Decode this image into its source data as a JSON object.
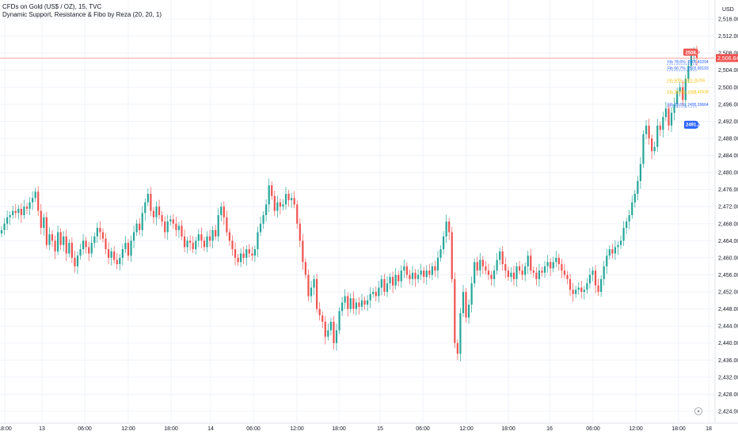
{
  "header": {
    "symbol_line": "CFDs on Gold (US$ / OZ), 15, TVC",
    "indicator_line": "Dynamic Support, Resistance & Fibo by Reza (20, 20, 1)",
    "currency": "USD"
  },
  "colors": {
    "up": "#26a69a",
    "down": "#ef5350",
    "grid": "#f0f3fa",
    "price_line": "#ef5350",
    "resistance": "#ef5350",
    "support": "#2962ff",
    "fib": "#2962ff",
    "fib_mid": "#f5c518"
  },
  "chart_data": {
    "type": "candlestick",
    "title": "CFDs on Gold (US$ / OZ), 15, TVC",
    "ylim": [
      2422,
      2518
    ],
    "yticks": [
      "2,516.00",
      "2,512.00",
      "2,508.00",
      "2,504.00",
      "2,500.00",
      "2,496.00",
      "2,492.00",
      "2,488.00",
      "2,484.00",
      "2,480.00",
      "2,476.00",
      "2,472.00",
      "2,468.00",
      "2,464.00",
      "2,460.00",
      "2,456.00",
      "2,452.00",
      "2,448.00",
      "2,444.00",
      "2,440.00",
      "2,436.00",
      "2,432.00",
      "2,428.00",
      "2,424.00"
    ],
    "xticks": [
      "18:00",
      "13",
      "06:00",
      "12:00",
      "18:00",
      "14",
      "06:00",
      "12:00",
      "18:00",
      "15",
      "06:00",
      "12:00",
      "18:00",
      "16",
      "06:00",
      "12:00",
      "18:00",
      "18"
    ],
    "last_price": "2,506.84",
    "last_price_value": 2506.84,
    "resistance_label": "2508.11",
    "resistance_value": 2508.11,
    "support_label": "2491.2",
    "support_value": 2491.2,
    "fib_levels": [
      {
        "label": "Fib 78.6%: 2505.40294",
        "value": 2505.40294
      },
      {
        "label": "Fib 66.7%: 2503.90193",
        "value": 2503.90193
      },
      {
        "label": "Fib 50%: 2501.05265",
        "value": 2501.05265
      },
      {
        "label": "Fib 38.2%: 2498.40938",
        "value": 2498.40938
      },
      {
        "label": "Fib 23.6%: 2495.39664",
        "value": 2495.39664
      }
    ],
    "closes": [
      2466.5,
      2468,
      2469.5,
      2470,
      2471,
      2470.5,
      2471.5,
      2470,
      2472,
      2471.5,
      2473,
      2474,
      2475.5,
      2471,
      2467,
      2469.5,
      2463,
      2465.5,
      2464,
      2461.5,
      2466,
      2463,
      2465,
      2461,
      2463.5,
      2460,
      2458,
      2460.5,
      2462,
      2464,
      2462.5,
      2461,
      2463.5,
      2465,
      2467,
      2466,
      2464.5,
      2462,
      2460,
      2461.5,
      2459.5,
      2458.5,
      2460,
      2462,
      2463.5,
      2460.5,
      2464,
      2466,
      2468,
      2466.5,
      2470.5,
      2473,
      2475,
      2471,
      2469.5,
      2472,
      2470,
      2468.5,
      2466,
      2468.5,
      2469,
      2468,
      2466.5,
      2467.5,
      2465,
      2462.5,
      2464,
      2463.5,
      2462,
      2464,
      2465.5,
      2464,
      2462.5,
      2465,
      2464,
      2466.5,
      2465,
      2470,
      2472,
      2469.5,
      2466,
      2464,
      2462,
      2460,
      2459,
      2461,
      2460,
      2462,
      2461,
      2460.5,
      2462,
      2466,
      2468,
      2470,
      2472.5,
      2477,
      2474.5,
      2471,
      2473,
      2472,
      2472.5,
      2475,
      2473.5,
      2474,
      2472.5,
      2468,
      2464,
      2459,
      2456,
      2451,
      2453,
      2455,
      2448,
      2446.5,
      2445,
      2441.5,
      2443,
      2445,
      2440,
      2443,
      2447.5,
      2449.5,
      2451,
      2448,
      2450.5,
      2448,
      2449.5,
      2448.5,
      2450,
      2449,
      2450,
      2451.5,
      2452,
      2451,
      2453,
      2455,
      2452,
      2454,
      2455.5,
      2453.5,
      2456,
      2454.5,
      2457,
      2458,
      2456,
      2455,
      2456.5,
      2455,
      2456,
      2457,
      2455.5,
      2457,
      2456,
      2458,
      2457,
      2460,
      2462,
      2465,
      2468.5,
      2466,
      2455,
      2440,
      2437.5,
      2447,
      2452,
      2446,
      2449,
      2454,
      2459,
      2457,
      2459.5,
      2458,
      2457,
      2456,
      2455,
      2457,
      2459.5,
      2461.5,
      2458.5,
      2457,
      2455.5,
      2456.5,
      2455,
      2458,
      2457,
      2456,
      2458,
      2460.5,
      2457,
      2456.5,
      2455,
      2457,
      2456.5,
      2458,
      2459,
      2457.5,
      2459,
      2460,
      2458.5,
      2457,
      2456,
      2455,
      2452.5,
      2451.5,
      2452.5,
      2453,
      2452,
      2452.5,
      2454,
      2456,
      2457,
      2453.5,
      2452,
      2455,
      2458,
      2460.5,
      2462,
      2461,
      2462.5,
      2463,
      2464,
      2467,
      2468.5,
      2470,
      2473,
      2475,
      2478,
      2482,
      2489,
      2491,
      2488,
      2485,
      2486,
      2491,
      2490,
      2493,
      2495,
      2491,
      2494,
      2496,
      2499,
      2500,
      2497,
      2502,
      2505,
      2507.5,
      2508.5,
      2506.84
    ]
  }
}
